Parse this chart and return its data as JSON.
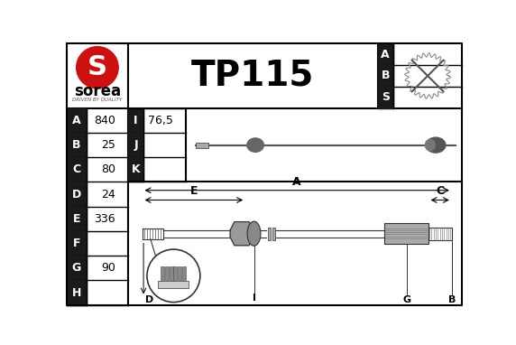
{
  "title": "TP115",
  "bg_color": "#ffffff",
  "border_color": "#000000",
  "label_bg": "#1a1a1a",
  "label_fg": "#ffffff",
  "table_rows": [
    {
      "letter": "A",
      "value": "840"
    },
    {
      "letter": "B",
      "value": "25"
    },
    {
      "letter": "C",
      "value": "80"
    },
    {
      "letter": "D",
      "value": "24"
    },
    {
      "letter": "E",
      "value": "336"
    },
    {
      "letter": "F",
      "value": ""
    },
    {
      "letter": "G",
      "value": "90"
    },
    {
      "letter": "H",
      "value": ""
    }
  ],
  "table_right": [
    {
      "letter": "I",
      "value": "76,5"
    },
    {
      "letter": "J",
      "value": ""
    },
    {
      "letter": "K",
      "value": ""
    }
  ],
  "abs_letters": [
    "A",
    "B",
    "S"
  ],
  "sorea_text": "sorea",
  "sorea_sub": "DRIVEN BY QUALITY"
}
